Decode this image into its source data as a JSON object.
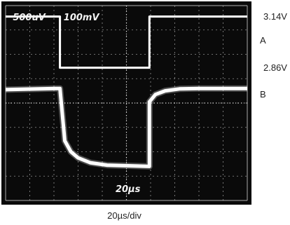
{
  "chart_data": {
    "type": "line",
    "title": "",
    "xlabel": "20µs/div",
    "ylabel": "",
    "grid": true,
    "channel_scales": [
      "500uV",
      "100mV"
    ],
    "corner_label": "20µs",
    "colors": {
      "screen": "#0a0a0a",
      "trace": "#ffffff",
      "grid": "#bdbdbd"
    },
    "x_divisions": 10,
    "y_divisions": 8,
    "level_labels": [
      {
        "text": "3.14V",
        "level_div": 3.55
      },
      {
        "text": "2.86V",
        "level_div": 1.45
      }
    ],
    "trace_labels": [
      {
        "text": "A",
        "level_div": 2.55
      },
      {
        "text": "B",
        "level_div": 0.35
      }
    ],
    "series": [
      {
        "name": "A",
        "x": [
          0,
          2.25,
          2.25,
          5.95,
          5.95,
          10
        ],
        "y": [
          3.55,
          3.55,
          1.45,
          1.45,
          3.55,
          3.55
        ]
      },
      {
        "name": "B",
        "x": [
          0,
          2.05,
          2.25,
          2.45,
          2.7,
          3.0,
          3.5,
          4.2,
          5.95,
          5.95,
          6.2,
          6.6,
          7.2,
          8.0,
          10
        ],
        "y": [
          0.55,
          0.6,
          0.6,
          -1.55,
          -2.0,
          -2.25,
          -2.45,
          -2.55,
          -2.6,
          0.05,
          0.35,
          0.5,
          0.58,
          0.6,
          0.6
        ]
      }
    ]
  }
}
